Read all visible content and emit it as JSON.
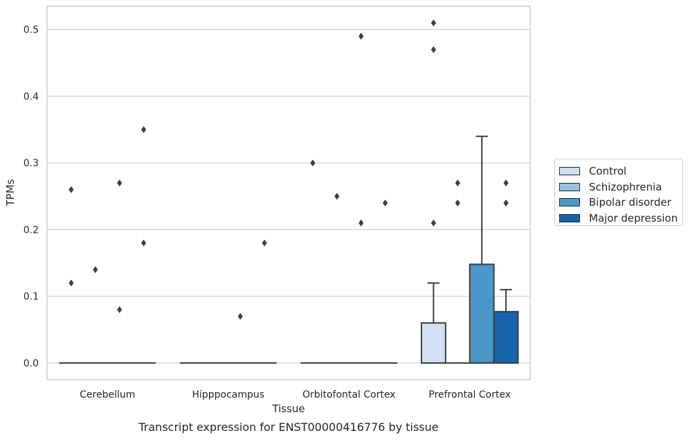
{
  "chart_data": {
    "type": "box",
    "title": "Transcript expression for ENST00000416776 by tissue",
    "xlabel": "Tissue",
    "ylabel": "TPMs",
    "ylim": [
      -0.025,
      0.535
    ],
    "yticks": [
      "0.0",
      "0.1",
      "0.2",
      "0.3",
      "0.4",
      "0.5"
    ],
    "ytick_values": [
      0,
      0.1,
      0.2,
      0.3,
      0.4,
      0.5
    ],
    "grid": "horizontal",
    "legend_position": "right, outside",
    "categories": [
      "Cerebellum",
      "Hipppocampus",
      "Orbitofontal Cortex",
      "Prefrontal Cortex"
    ],
    "series": [
      {
        "name": "Control",
        "color": "#d0e1f2"
      },
      {
        "name": "Schizophrenia",
        "color": "#94c4df"
      },
      {
        "name": "Bipolar disorder",
        "color": "#4a98c9"
      },
      {
        "name": "Major depression",
        "color": "#1764ab"
      }
    ],
    "boxes": [
      {
        "category": 0,
        "series": 0,
        "q1": 0,
        "median": 0,
        "q3": 0,
        "whisker_low": 0,
        "whisker_high": 0,
        "outliers": [
          0.26,
          0.12
        ]
      },
      {
        "category": 0,
        "series": 1,
        "q1": 0,
        "median": 0,
        "q3": 0,
        "whisker_low": 0,
        "whisker_high": 0,
        "outliers": [
          0.14
        ]
      },
      {
        "category": 0,
        "series": 2,
        "q1": 0,
        "median": 0,
        "q3": 0,
        "whisker_low": 0,
        "whisker_high": 0,
        "outliers": [
          0.27,
          0.08
        ]
      },
      {
        "category": 0,
        "series": 3,
        "q1": 0,
        "median": 0,
        "q3": 0,
        "whisker_low": 0,
        "whisker_high": 0,
        "outliers": [
          0.35,
          0.18
        ]
      },
      {
        "category": 1,
        "series": 0,
        "q1": 0,
        "median": 0,
        "q3": 0,
        "whisker_low": 0,
        "whisker_high": 0,
        "outliers": []
      },
      {
        "category": 1,
        "series": 1,
        "q1": 0,
        "median": 0,
        "q3": 0,
        "whisker_low": 0,
        "whisker_high": 0,
        "outliers": []
      },
      {
        "category": 1,
        "series": 2,
        "q1": 0,
        "median": 0,
        "q3": 0,
        "whisker_low": 0,
        "whisker_high": 0,
        "outliers": [
          0.07
        ]
      },
      {
        "category": 1,
        "series": 3,
        "q1": 0,
        "median": 0,
        "q3": 0,
        "whisker_low": 0,
        "whisker_high": 0,
        "outliers": [
          0.18
        ]
      },
      {
        "category": 2,
        "series": 0,
        "q1": 0,
        "median": 0,
        "q3": 0,
        "whisker_low": 0,
        "whisker_high": 0,
        "outliers": [
          0.3
        ]
      },
      {
        "category": 2,
        "series": 1,
        "q1": 0,
        "median": 0,
        "q3": 0,
        "whisker_low": 0,
        "whisker_high": 0,
        "outliers": [
          0.25
        ]
      },
      {
        "category": 2,
        "series": 2,
        "q1": 0,
        "median": 0,
        "q3": 0,
        "whisker_low": 0,
        "whisker_high": 0,
        "outliers": [
          0.49,
          0.21
        ]
      },
      {
        "category": 2,
        "series": 3,
        "q1": 0,
        "median": 0,
        "q3": 0,
        "whisker_low": 0,
        "whisker_high": 0,
        "outliers": [
          0.24
        ]
      },
      {
        "category": 3,
        "series": 0,
        "q1": 0,
        "median": 0,
        "q3": 0.06,
        "whisker_low": 0,
        "whisker_high": 0.12,
        "outliers": [
          0.51,
          0.47,
          0.21
        ]
      },
      {
        "category": 3,
        "series": 1,
        "q1": 0,
        "median": 0,
        "q3": 0,
        "whisker_low": 0,
        "whisker_high": 0,
        "outliers": [
          0.27,
          0.24
        ]
      },
      {
        "category": 3,
        "series": 2,
        "q1": 0,
        "median": 0,
        "q3": 0.148,
        "whisker_low": 0,
        "whisker_high": 0.34,
        "outliers": []
      },
      {
        "category": 3,
        "series": 3,
        "q1": 0,
        "median": 0,
        "q3": 0.077,
        "whisker_low": 0,
        "whisker_high": 0.11,
        "outliers": [
          0.27,
          0.24
        ]
      }
    ]
  }
}
